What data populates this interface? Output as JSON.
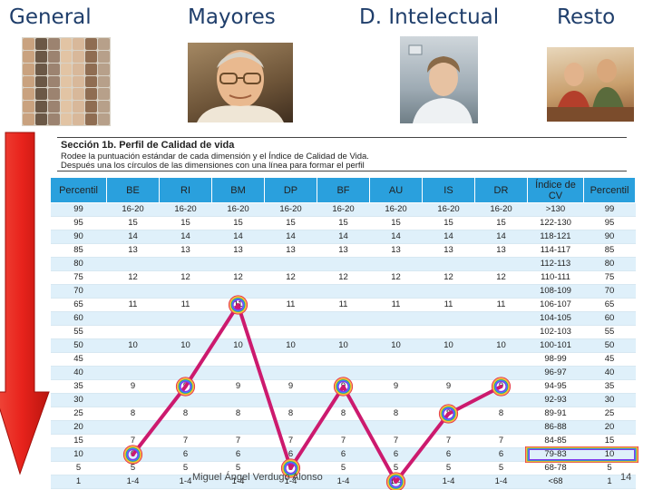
{
  "headers": {
    "general": "General",
    "mayores": "Mayores",
    "intelectual": "D.  Intelectual",
    "resto": "Resto"
  },
  "photos": {
    "general": "collage-of-faces",
    "mayores": "elderly-man-portrait",
    "intelectual": "young-woman-with-disability",
    "resto": "group-at-table"
  },
  "colors": {
    "header_text": "#1f3e6b",
    "table_header_bg": "#2aa0dd",
    "row_shade": "#dff0fa",
    "profile_line": "#cc1a6e",
    "arrow_fill": "#e8231c"
  },
  "section": {
    "title": "Sección 1b. Perfil de Calidad de vida",
    "line1": "Rodee la puntuación estándar de cada dimensión y el Índice de Calidad de Vida.",
    "line2": "Después una los círculos de las dimensiones con una línea para formar el perfil"
  },
  "table": {
    "columns": [
      "Percentil",
      "BE",
      "RI",
      "BM",
      "DP",
      "BF",
      "AU",
      "IS",
      "DR",
      "Índice de CV",
      "Percentil"
    ],
    "rows": [
      [
        "99",
        "16-20",
        "16-20",
        "16-20",
        "16-20",
        "16-20",
        "16-20",
        "16-20",
        "16-20",
        ">130",
        "99"
      ],
      [
        "95",
        "15",
        "15",
        "15",
        "15",
        "15",
        "15",
        "15",
        "15",
        "122-130",
        "95"
      ],
      [
        "90",
        "14",
        "14",
        "14",
        "14",
        "14",
        "14",
        "14",
        "14",
        "118-121",
        "90"
      ],
      [
        "85",
        "13",
        "13",
        "13",
        "13",
        "13",
        "13",
        "13",
        "13",
        "114-117",
        "85"
      ],
      [
        "80",
        "",
        "",
        "",
        "",
        "",
        "",
        "",
        "",
        "112-113",
        "80"
      ],
      [
        "75",
        "12",
        "12",
        "12",
        "12",
        "12",
        "12",
        "12",
        "12",
        "110-111",
        "75"
      ],
      [
        "70",
        "",
        "",
        "",
        "",
        "",
        "",
        "",
        "",
        "108-109",
        "70"
      ],
      [
        "65",
        "11",
        "11",
        "11",
        "11",
        "11",
        "11",
        "11",
        "11",
        "106-107",
        "65"
      ],
      [
        "60",
        "",
        "",
        "",
        "",
        "",
        "",
        "",
        "",
        "104-105",
        "60"
      ],
      [
        "55",
        "",
        "",
        "",
        "",
        "",
        "",
        "",
        "",
        "102-103",
        "55"
      ],
      [
        "50",
        "10",
        "10",
        "10",
        "10",
        "10",
        "10",
        "10",
        "10",
        "100-101",
        "50"
      ],
      [
        "45",
        "",
        "",
        "",
        "",
        "",
        "",
        "",
        "",
        "98-99",
        "45"
      ],
      [
        "40",
        "",
        "",
        "",
        "",
        "",
        "",
        "",
        "",
        "96-97",
        "40"
      ],
      [
        "35",
        "9",
        "9",
        "9",
        "9",
        "9",
        "9",
        "9",
        "9",
        "94-95",
        "35"
      ],
      [
        "30",
        "",
        "",
        "",
        "",
        "",
        "",
        "",
        "",
        "92-93",
        "30"
      ],
      [
        "25",
        "8",
        "8",
        "8",
        "8",
        "8",
        "8",
        "8",
        "8",
        "89-91",
        "25"
      ],
      [
        "20",
        "",
        "",
        "",
        "",
        "",
        "",
        "",
        "",
        "86-88",
        "20"
      ],
      [
        "15",
        "7",
        "7",
        "7",
        "7",
        "7",
        "7",
        "7",
        "7",
        "84-85",
        "15"
      ],
      [
        "10",
        "6",
        "6",
        "6",
        "6",
        "6",
        "6",
        "6",
        "6",
        "79-83",
        "10"
      ],
      [
        "5",
        "5",
        "5",
        "5",
        "5",
        "5",
        "5",
        "5",
        "5",
        "68-78",
        "5"
      ],
      [
        "1",
        "1-4",
        "1-4",
        "1-4",
        "1-4",
        "1-4",
        "1-4",
        "1-4",
        "1-4",
        "<68",
        "1"
      ]
    ]
  },
  "profile": {
    "points": [
      {
        "column": 1,
        "row": 18
      },
      {
        "column": 2,
        "row": 13
      },
      {
        "column": 3,
        "row": 7
      },
      {
        "column": 4,
        "row": 19
      },
      {
        "column": 5,
        "row": 13
      },
      {
        "column": 6,
        "row": 20
      },
      {
        "column": 7,
        "row": 15
      },
      {
        "column": 8,
        "row": 13
      }
    ],
    "highlight_row": 18
  },
  "footer": {
    "author": "Miguel Ángel Verdugo Alonso",
    "page": "14"
  }
}
